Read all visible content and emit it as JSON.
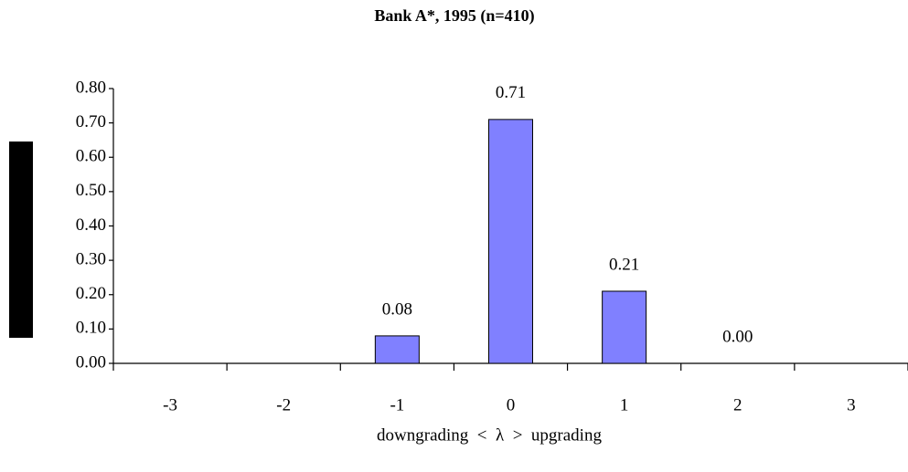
{
  "chart_data": {
    "type": "bar",
    "title": "Bank A*, 1995 (n=410)",
    "x_label": "downgrading  <  λ  >  upgrading",
    "categories": [
      "-3",
      "-2",
      "-1",
      "0",
      "1",
      "2",
      "3"
    ],
    "values": [
      null,
      null,
      0.08,
      0.71,
      0.21,
      0,
      null
    ],
    "value_labels": [
      null,
      null,
      "0.08",
      "0.71",
      "0.21",
      "0.00",
      null
    ],
    "color": "#8080ff",
    "ylim": [
      0,
      0.8
    ],
    "yticks": [
      {
        "value": 0,
        "label": "0.00"
      },
      {
        "value": 0.1,
        "label": "0.10"
      },
      {
        "value": 0.2,
        "label": "0.20"
      },
      {
        "value": 0.3,
        "label": "0.30"
      },
      {
        "value": 0.4,
        "label": "0.40"
      },
      {
        "value": 0.5,
        "label": "0.50"
      },
      {
        "value": 0.6,
        "label": "0.60"
      },
      {
        "value": 0.7,
        "label": "0.70"
      },
      {
        "value": 0.8,
        "label": "0.80"
      }
    ]
  }
}
